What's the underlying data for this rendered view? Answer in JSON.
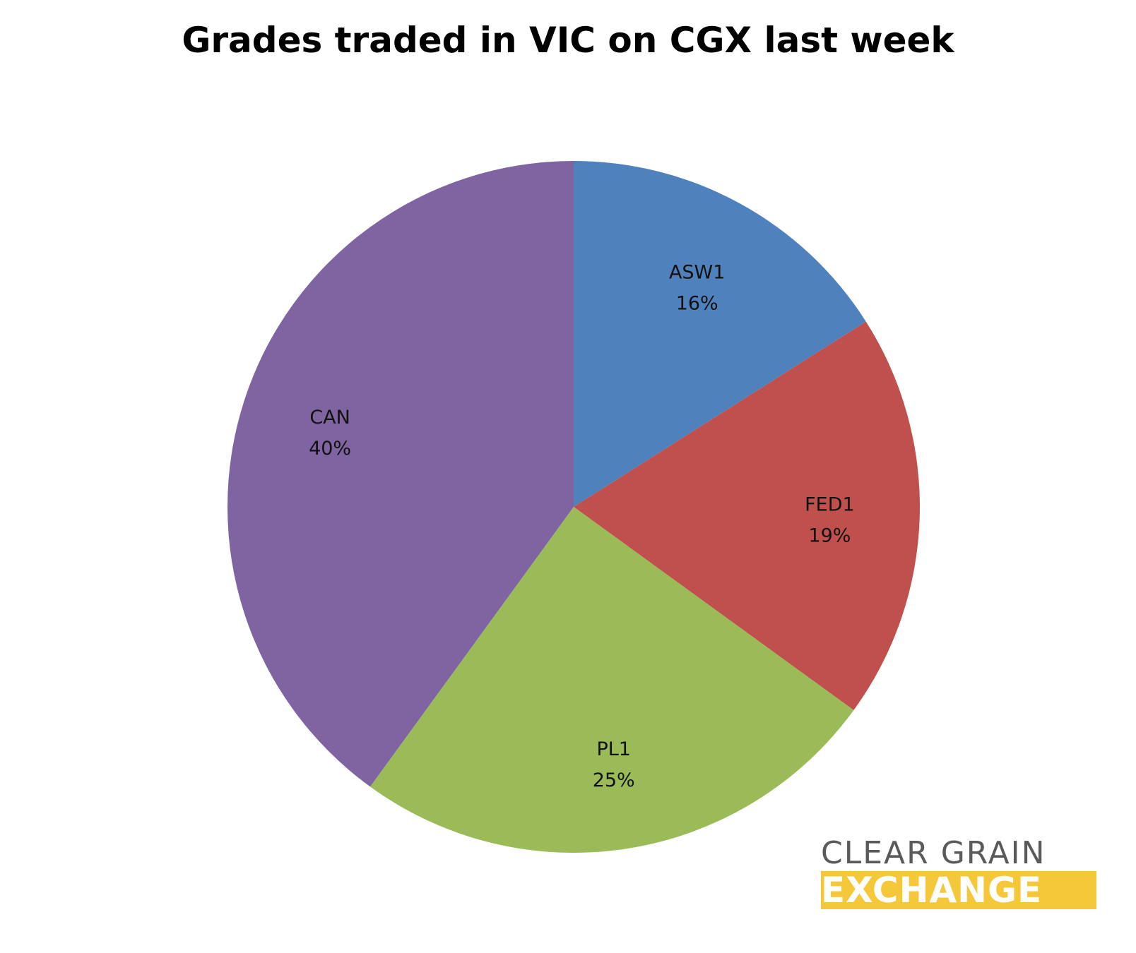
{
  "chart_data": {
    "type": "pie",
    "title": "Grades traded in VIC on CGX last week",
    "start_angle_deg": 0,
    "direction": "clockwise",
    "legend": "none",
    "slices": [
      {
        "label": "ASW1",
        "value": 16,
        "display": "16%",
        "color": "#4f81bd"
      },
      {
        "label": "FED1",
        "value": 19,
        "display": "19%",
        "color": "#c0504d"
      },
      {
        "label": "PL1",
        "value": 25,
        "display": "25%",
        "color": "#9bbb59"
      },
      {
        "label": "CAN",
        "value": 40,
        "display": "40%",
        "color": "#8064a2"
      }
    ]
  },
  "logo": {
    "line1": "CLEAR GRAIN",
    "line2": "EXCHANGE",
    "line1_color": "#5a5a5a",
    "line2_bg_color": "#f5c83a"
  }
}
